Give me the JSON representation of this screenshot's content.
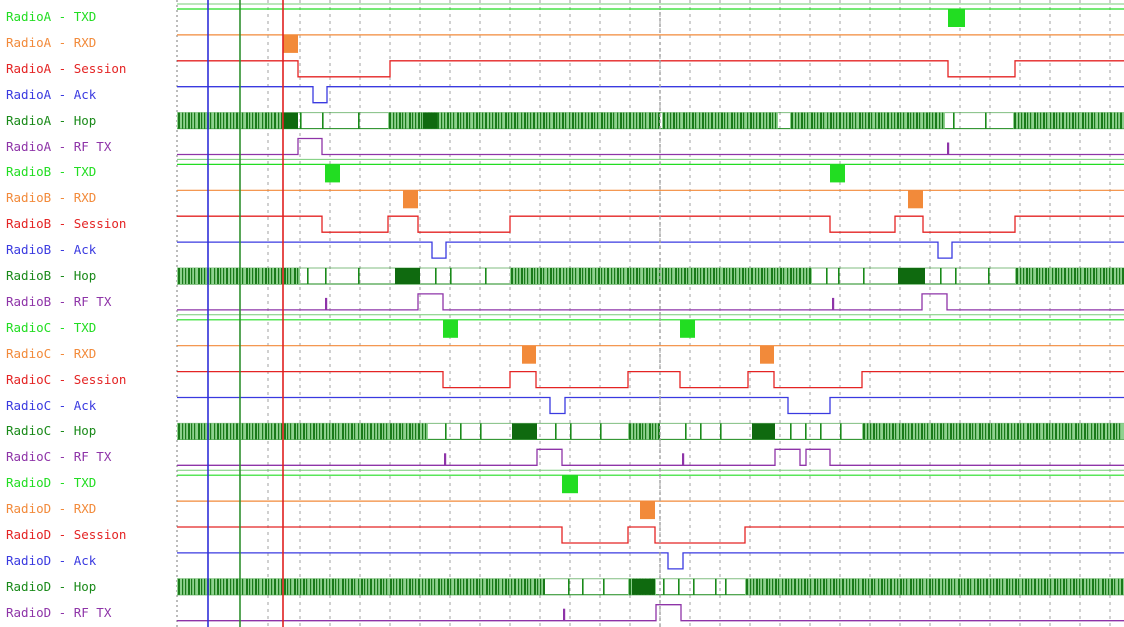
{
  "colors": {
    "TXD": "#22dd22",
    "RXD": "#f28a3a",
    "Session": "#e42424",
    "Ack": "#3a3ae0",
    "Hop": "#1a8a1a",
    "RF TX": "#8e34a8",
    "group_divider": "#77cc77",
    "grid": "#a0a0a0",
    "cursor_blue": "#2f2fd8",
    "cursor_green": "#2f8f2f",
    "cursor_red": "#e02020"
  },
  "signals": [
    {
      "label": "RadioA - TXD",
      "kind": "TXD",
      "pulses": [
        [
          948,
          965
        ]
      ]
    },
    {
      "label": "RadioA - RXD",
      "kind": "RXD",
      "pulses": [
        [
          283,
          298
        ]
      ]
    },
    {
      "label": "RadioA - Session",
      "kind": "Session",
      "lows": [
        [
          298,
          390
        ],
        [
          948,
          1015
        ]
      ]
    },
    {
      "label": "RadioA - Ack",
      "kind": "Ack",
      "lows": [
        [
          313,
          327
        ]
      ]
    },
    {
      "label": "RadioA - Hop",
      "kind": "Hop",
      "bursts": [
        [
          177,
          283
        ],
        [
          388,
          660
        ],
        [
          662,
          778
        ],
        [
          790,
          945
        ],
        [
          1013,
          1124
        ]
      ],
      "dark": [
        [
          283,
          298
        ],
        [
          423,
          437
        ]
      ],
      "ticks": [
        300,
        322,
        358,
        953,
        985
      ]
    },
    {
      "label": "RadioA - RF TX",
      "kind": "RF TX",
      "highs": [
        [
          298,
          322
        ]
      ],
      "spikes": [
        947
      ]
    },
    {
      "label": "RadioB - TXD",
      "kind": "TXD",
      "pulses": [
        [
          325,
          340
        ],
        [
          830,
          845
        ]
      ]
    },
    {
      "label": "RadioB - RXD",
      "kind": "RXD",
      "pulses": [
        [
          403,
          418
        ],
        [
          908,
          923
        ]
      ]
    },
    {
      "label": "RadioB - Session",
      "kind": "Session",
      "lows": [
        [
          322,
          388
        ],
        [
          418,
          510
        ],
        [
          830,
          895
        ],
        [
          923,
          1015
        ]
      ]
    },
    {
      "label": "RadioB - Ack",
      "kind": "Ack",
      "lows": [
        [
          432,
          446
        ],
        [
          938,
          952
        ]
      ]
    },
    {
      "label": "RadioB - Hop",
      "kind": "Hop",
      "bursts": [
        [
          177,
          300
        ],
        [
          510,
          812
        ],
        [
          1015,
          1124
        ]
      ],
      "dark": [
        [
          395,
          420
        ],
        [
          898,
          925
        ]
      ],
      "ticks": [
        307,
        325,
        358,
        435,
        450,
        485,
        826,
        838,
        863,
        940,
        955,
        988
      ]
    },
    {
      "label": "RadioB - RF TX",
      "kind": "RF TX",
      "highs": [
        [
          418,
          443
        ],
        [
          922,
          947
        ]
      ],
      "spikes": [
        325,
        832
      ]
    },
    {
      "label": "RadioC - TXD",
      "kind": "TXD",
      "pulses": [
        [
          443,
          458
        ],
        [
          680,
          695
        ]
      ]
    },
    {
      "label": "RadioC - RXD",
      "kind": "RXD",
      "pulses": [
        [
          522,
          536
        ],
        [
          760,
          774
        ]
      ]
    },
    {
      "label": "RadioC - Session",
      "kind": "Session",
      "lows": [
        [
          443,
          510
        ],
        [
          536,
          628
        ],
        [
          680,
          748
        ],
        [
          774,
          862
        ]
      ]
    },
    {
      "label": "RadioC - Ack",
      "kind": "Ack",
      "lows": [
        [
          550,
          565
        ],
        [
          788,
          830
        ]
      ]
    },
    {
      "label": "RadioC - Hop",
      "kind": "Hop",
      "bursts": [
        [
          177,
          428
        ],
        [
          628,
          660
        ],
        [
          862,
          1124
        ]
      ],
      "dark": [
        [
          512,
          537
        ],
        [
          752,
          775
        ]
      ],
      "ticks": [
        445,
        460,
        480,
        555,
        570,
        600,
        685,
        700,
        720,
        790,
        805,
        820,
        840
      ]
    },
    {
      "label": "RadioC - RF TX",
      "kind": "RF TX",
      "highs": [
        [
          537,
          562
        ],
        [
          775,
          800
        ],
        [
          806,
          830
        ]
      ],
      "spikes": [
        444,
        682
      ]
    },
    {
      "label": "RadioD - TXD",
      "kind": "TXD",
      "pulses": [
        [
          562,
          578
        ]
      ]
    },
    {
      "label": "RadioD - RXD",
      "kind": "RXD",
      "pulses": [
        [
          640,
          655
        ]
      ]
    },
    {
      "label": "RadioD - Session",
      "kind": "Session",
      "lows": [
        [
          562,
          628
        ],
        [
          655,
          745
        ]
      ]
    },
    {
      "label": "RadioD - Ack",
      "kind": "Ack",
      "lows": [
        [
          668,
          683
        ]
      ]
    },
    {
      "label": "RadioD - Hop",
      "kind": "Hop",
      "bursts": [
        [
          177,
          545
        ],
        [
          628,
          656
        ],
        [
          745,
          1124
        ]
      ],
      "dark": [
        [
          632,
          655
        ]
      ],
      "ticks": [
        568,
        582,
        603,
        663,
        678,
        693,
        715,
        725
      ]
    },
    {
      "label": "RadioD - RF TX",
      "kind": "RF TX",
      "highs": [
        [
          656,
          681
        ]
      ],
      "spikes": [
        563
      ]
    }
  ],
  "grid": [
    208,
    240,
    268,
    300,
    330,
    360,
    390,
    420,
    450,
    480,
    510,
    540,
    570,
    600,
    630,
    660,
    690,
    720,
    750,
    780,
    810,
    840,
    870,
    900,
    930,
    960,
    990,
    1020,
    1050,
    1080,
    1110
  ],
  "cursors": [
    {
      "name": "cursor-blue",
      "x": 208,
      "color_key": "cursor_blue"
    },
    {
      "name": "cursor-green",
      "x": 240,
      "color_key": "cursor_green"
    },
    {
      "name": "cursor-red",
      "x": 283,
      "color_key": "cursor_red"
    },
    {
      "name": "cursor-gray",
      "x": 660,
      "color_key": "grid"
    }
  ]
}
